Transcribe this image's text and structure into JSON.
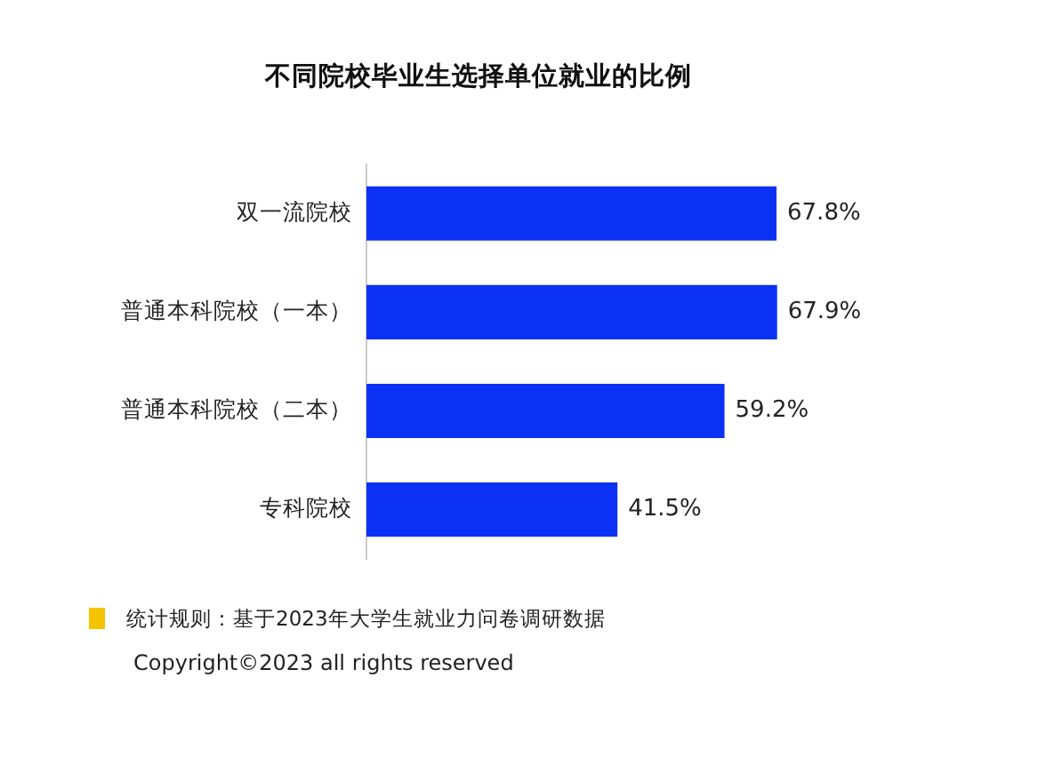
{
  "chart_data": {
    "type": "bar",
    "orientation": "horizontal",
    "title": "不同院校毕业生选择单位就业的比例",
    "categories": [
      "双一流院校",
      "普通本科院校（一本）",
      "普通本科院校（二本）",
      "专科院校"
    ],
    "values": [
      67.8,
      67.9,
      59.2,
      41.5
    ],
    "value_labels": [
      "67.8%",
      "67.9%",
      "59.2%",
      "41.5%"
    ],
    "color": "#0b31f5",
    "tick_labels": "y",
    "grid": false,
    "legend": false,
    "annotations": [
      "统计规则：基于2023年大学生就业力问卷调研数据",
      "Copyright©2023 all rights reserved"
    ]
  }
}
